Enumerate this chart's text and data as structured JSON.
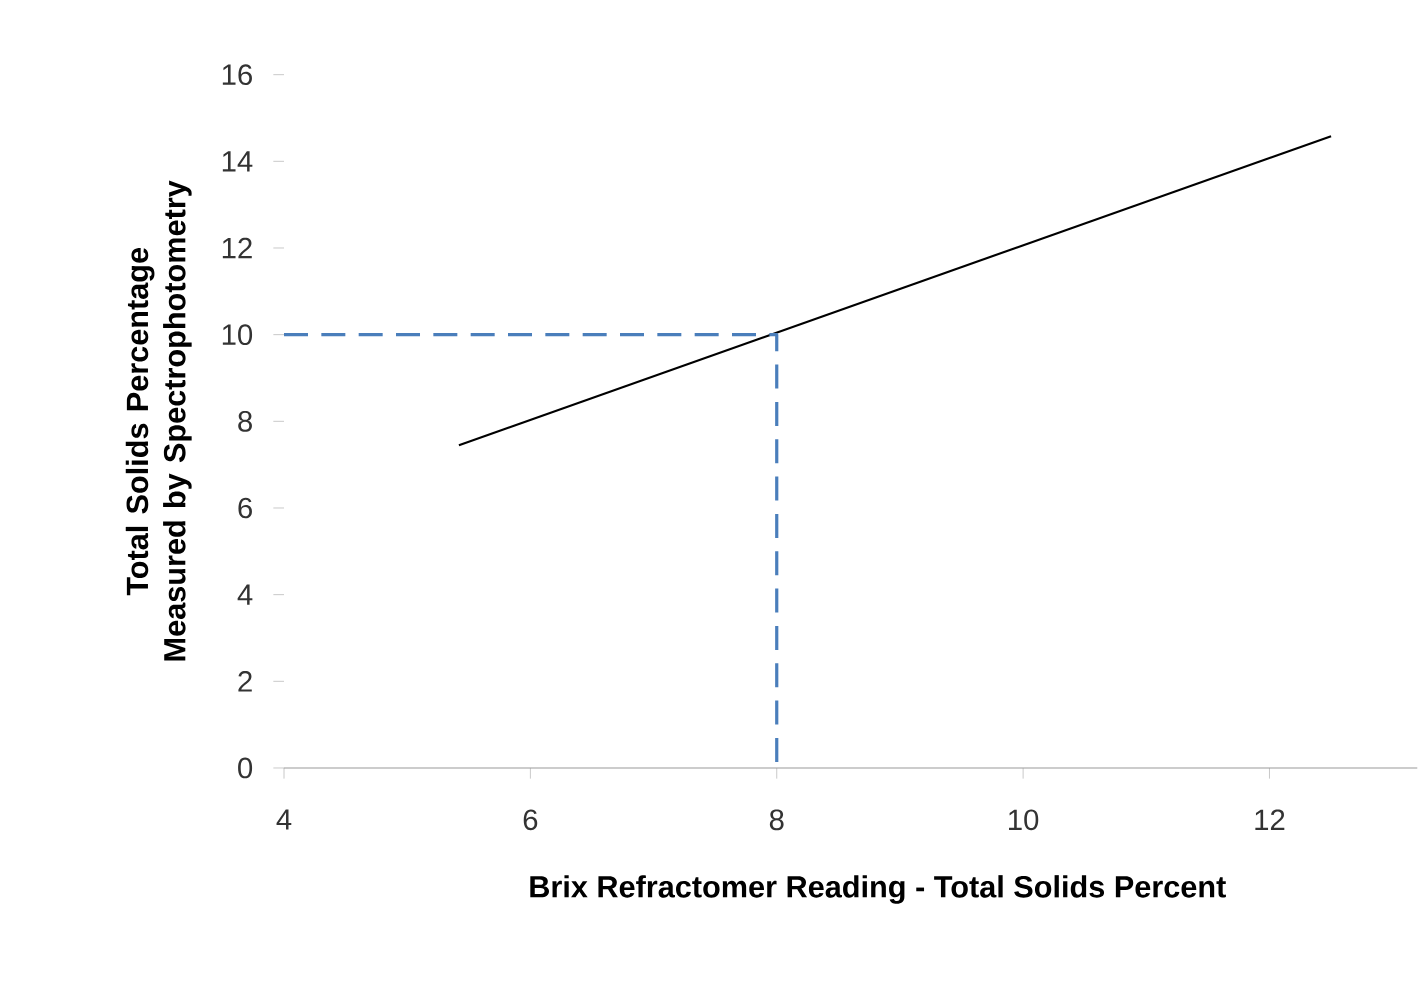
{
  "chart_data": {
    "type": "line",
    "xlabel": "Brix Refractomer Reading - Total Solids Percent",
    "ylabel": "Total Solids Percentage Measured by Spectrophotometry",
    "xlim": [
      4,
      13.2
    ],
    "ylim": [
      0,
      16
    ],
    "xticks": [
      4,
      6,
      8,
      10,
      12
    ],
    "yticks": [
      0,
      2,
      4,
      6,
      8,
      10,
      12,
      14,
      16
    ],
    "grid": false,
    "marker": "none",
    "series": [
      {
        "color": "#000000",
        "x": [
          5.42,
          12.5
        ],
        "values": [
          7.45,
          14.58
        ]
      },
      {
        "color": "#4a7ebb",
        "x": [
          4,
          8,
          8
        ],
        "values": [
          10,
          10,
          0
        ],
        "line_style": "dashed"
      }
    ]
  }
}
